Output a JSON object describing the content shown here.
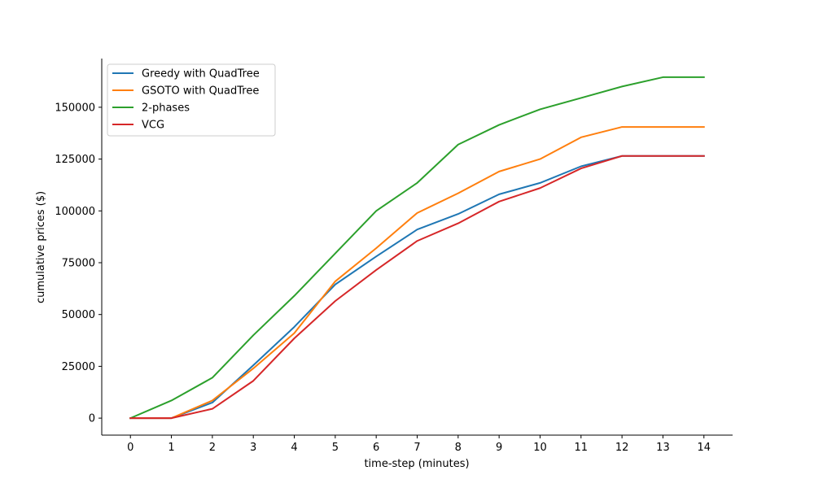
{
  "chart_data": {
    "type": "line",
    "title": "",
    "xlabel": "time-step (minutes)",
    "ylabel": "cumulative prices ($)",
    "x": [
      0,
      1,
      2,
      3,
      4,
      5,
      6,
      7,
      8,
      9,
      10,
      11,
      12,
      13,
      14
    ],
    "x_tick_labels": [
      "0",
      "1",
      "2",
      "3",
      "4",
      "5",
      "6",
      "7",
      "8",
      "9",
      "10",
      "11",
      "12",
      "13",
      "14"
    ],
    "y_ticks": [
      0,
      25000,
      50000,
      75000,
      100000,
      125000,
      150000
    ],
    "y_tick_labels": [
      "0",
      "25000",
      "50000",
      "75000",
      "100000",
      "125000",
      "150000"
    ],
    "xlim": [
      -0.7,
      14.7
    ],
    "ylim": [
      -8200,
      173500
    ],
    "grid": false,
    "legend_position": "top-left",
    "series": [
      {
        "name": "Greedy with QuadTree",
        "color": "#1f77b4",
        "values": [
          0,
          0,
          7500,
          25500,
          44000,
          64500,
          78000,
          91000,
          98500,
          108000,
          113500,
          121500,
          126500,
          126500,
          126500
        ]
      },
      {
        "name": "GSOTO with QuadTree",
        "color": "#ff7f0e",
        "values": [
          0,
          0,
          8500,
          24000,
          41000,
          66000,
          82000,
          99000,
          108500,
          119000,
          125000,
          135500,
          140500,
          140500,
          140500
        ]
      },
      {
        "name": "2-phases",
        "color": "#2ca02c",
        "values": [
          0,
          8500,
          19500,
          40000,
          59000,
          79500,
          100000,
          113500,
          132000,
          141500,
          149000,
          154500,
          160000,
          164500,
          164500
        ]
      },
      {
        "name": "VCG",
        "color": "#d62728",
        "values": [
          0,
          0,
          4500,
          18000,
          38500,
          56500,
          71500,
          85500,
          94000,
          104500,
          111000,
          120500,
          126500,
          126500,
          126500
        ]
      }
    ]
  }
}
